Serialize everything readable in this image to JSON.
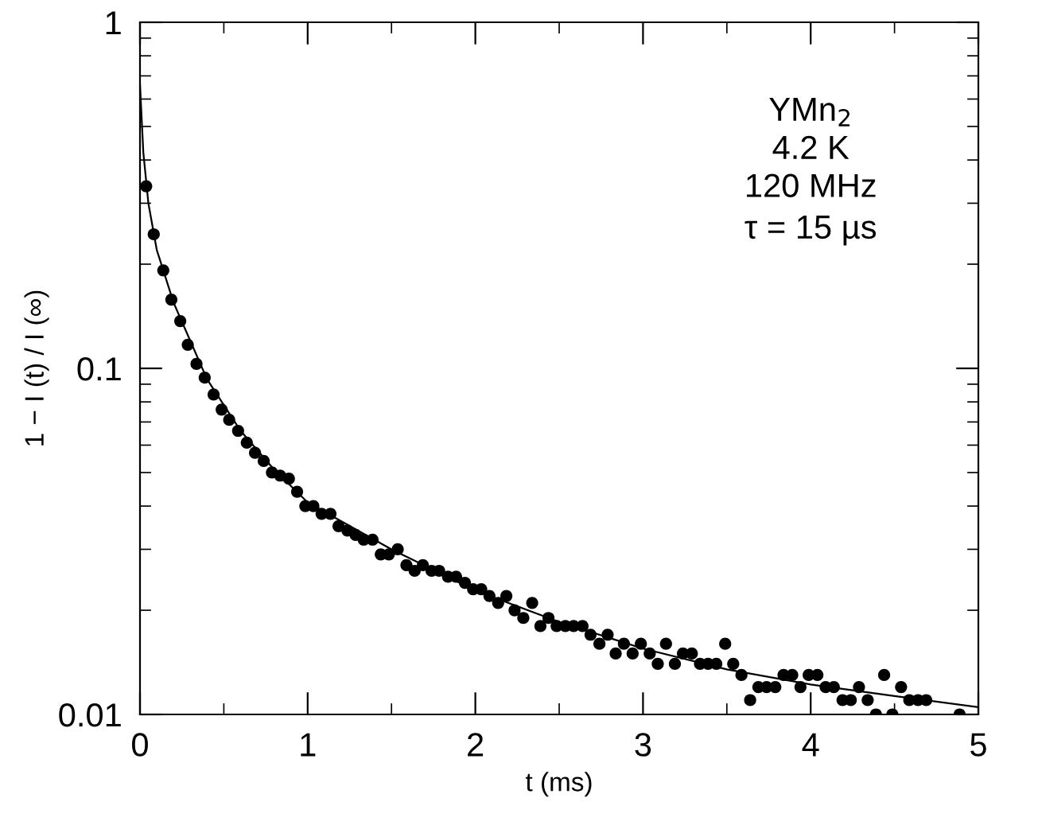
{
  "chart_data": {
    "type": "scatter",
    "xlabel": "t (ms)",
    "ylabel": "1 − I (t) / I (∞)",
    "log": "y",
    "grid": false,
    "xlim": [
      0,
      5
    ],
    "xticks": [
      0,
      1,
      2,
      3,
      4,
      5
    ],
    "ylim": [
      0.01,
      1
    ],
    "yticks": [
      0.01,
      0.1,
      1
    ],
    "annotations": [
      "YMn$_{2}$",
      "4.2 K",
      "120 MHz",
      "τ = 15 µs"
    ],
    "series": [
      {
        "marker": "circle",
        "color": "#000000",
        "x": [
          0.037,
          0.082,
          0.139,
          0.187,
          0.24,
          0.285,
          0.337,
          0.386,
          0.439,
          0.487,
          0.532,
          0.585,
          0.637,
          0.686,
          0.738,
          0.787,
          0.836,
          0.888,
          0.937,
          0.986,
          1.034,
          1.083,
          1.136,
          1.184,
          1.237,
          1.286,
          1.334,
          1.387,
          1.436,
          1.484,
          1.537,
          1.589,
          1.638,
          1.687,
          1.739,
          1.784,
          1.837,
          1.885,
          1.938,
          1.987,
          2.035,
          2.084,
          2.136,
          2.185,
          2.234,
          2.286,
          2.339,
          2.388,
          2.436,
          2.485,
          2.537,
          2.586,
          2.639,
          2.687,
          2.74,
          2.789,
          2.837,
          2.886,
          2.938,
          2.987,
          3.04,
          3.088,
          3.137,
          3.19,
          3.238,
          3.291,
          3.34,
          3.388,
          3.437,
          3.49,
          3.538,
          3.587,
          3.639,
          3.688,
          3.737,
          3.789,
          3.838,
          3.89,
          3.939,
          3.988,
          4.04,
          4.089,
          4.138,
          4.19,
          4.239,
          4.288,
          4.34,
          4.389,
          4.438,
          4.487,
          4.539,
          4.588,
          4.64,
          4.689,
          4.888
        ],
        "values": [
          0.336,
          0.244,
          0.192,
          0.158,
          0.137,
          0.117,
          0.103,
          0.094,
          0.084,
          0.076,
          0.071,
          0.066,
          0.061,
          0.057,
          0.054,
          0.05,
          0.049,
          0.048,
          0.044,
          0.04,
          0.04,
          0.038,
          0.038,
          0.035,
          0.034,
          0.033,
          0.032,
          0.032,
          0.029,
          0.029,
          0.03,
          0.027,
          0.026,
          0.027,
          0.026,
          0.026,
          0.025,
          0.025,
          0.024,
          0.023,
          0.023,
          0.022,
          0.021,
          0.022,
          0.02,
          0.019,
          0.021,
          0.018,
          0.019,
          0.018,
          0.018,
          0.018,
          0.018,
          0.017,
          0.016,
          0.017,
          0.015,
          0.016,
          0.015,
          0.016,
          0.015,
          0.014,
          0.016,
          0.014,
          0.015,
          0.015,
          0.014,
          0.014,
          0.014,
          0.016,
          0.014,
          0.013,
          0.011,
          0.012,
          0.012,
          0.012,
          0.013,
          0.013,
          0.012,
          0.013,
          0.013,
          0.012,
          0.012,
          0.011,
          0.011,
          0.012,
          0.011,
          0.01,
          0.013,
          0.01,
          0.012,
          0.011,
          0.011,
          0.011,
          0.01
        ]
      },
      {
        "type": "line",
        "marker": "none",
        "color": "#000000",
        "x": [
          0,
          0.02,
          0.05,
          0.1,
          0.2,
          0.4,
          0.6,
          0.8,
          1,
          1.5,
          2,
          2.5,
          3,
          3.5,
          4,
          4.5,
          5
        ],
        "values": [
          0.66,
          0.42,
          0.3,
          0.22,
          0.155,
          0.093,
          0.066,
          0.051,
          0.041,
          0.03,
          0.0228,
          0.0185,
          0.0155,
          0.0135,
          0.0122,
          0.0113,
          0.0105
        ]
      }
    ]
  }
}
